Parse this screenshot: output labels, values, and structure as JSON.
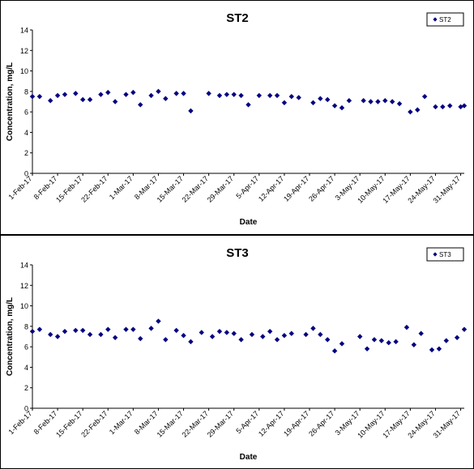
{
  "chart_data": [
    {
      "type": "scatter",
      "title": "ST2",
      "xlabel": "Date",
      "ylabel": "Concentration, mg/L",
      "ylim": [
        0,
        14
      ],
      "yticks": [
        0,
        2,
        4,
        6,
        8,
        10,
        12,
        14
      ],
      "xlim": [
        "2017-02-01",
        "2017-06-01"
      ],
      "xtick_labels": [
        "1-Feb-17",
        "8-Feb-17",
        "15-Feb-17",
        "22-Feb-17",
        "1-Mar-17",
        "8-Mar-17",
        "15-Mar-17",
        "22-Mar-17",
        "29-Mar-17",
        "5-Apr-17",
        "12-Apr-17",
        "19-Apr-17",
        "26-Apr-17",
        "3-May-17",
        "10-May-17",
        "17-May-17",
        "24-May-17",
        "31-May-17"
      ],
      "legend": {
        "position": "top-right",
        "entries": [
          "ST2"
        ]
      },
      "grid": false,
      "marker_color": "#000080",
      "series": [
        {
          "name": "ST2",
          "points": [
            [
              "2017-02-01",
              7.5
            ],
            [
              "2017-02-03",
              7.5
            ],
            [
              "2017-02-06",
              7.1
            ],
            [
              "2017-02-08",
              7.6
            ],
            [
              "2017-02-10",
              7.7
            ],
            [
              "2017-02-13",
              7.8
            ],
            [
              "2017-02-15",
              7.2
            ],
            [
              "2017-02-17",
              7.2
            ],
            [
              "2017-02-20",
              7.7
            ],
            [
              "2017-02-22",
              7.9
            ],
            [
              "2017-02-24",
              7.0
            ],
            [
              "2017-02-27",
              7.7
            ],
            [
              "2017-03-01",
              7.9
            ],
            [
              "2017-03-03",
              6.7
            ],
            [
              "2017-03-06",
              7.6
            ],
            [
              "2017-03-08",
              8.0
            ],
            [
              "2017-03-10",
              7.3
            ],
            [
              "2017-03-13",
              7.8
            ],
            [
              "2017-03-15",
              7.8
            ],
            [
              "2017-03-17",
              6.1
            ],
            [
              "2017-03-22",
              7.8
            ],
            [
              "2017-03-25",
              7.6
            ],
            [
              "2017-03-27",
              7.7
            ],
            [
              "2017-03-29",
              7.7
            ],
            [
              "2017-03-31",
              7.6
            ],
            [
              "2017-04-02",
              6.7
            ],
            [
              "2017-04-05",
              7.6
            ],
            [
              "2017-04-08",
              7.6
            ],
            [
              "2017-04-10",
              7.6
            ],
            [
              "2017-04-12",
              6.9
            ],
            [
              "2017-04-14",
              7.5
            ],
            [
              "2017-04-16",
              7.4
            ],
            [
              "2017-04-20",
              6.9
            ],
            [
              "2017-04-22",
              7.3
            ],
            [
              "2017-04-24",
              7.2
            ],
            [
              "2017-04-26",
              6.6
            ],
            [
              "2017-04-28",
              6.4
            ],
            [
              "2017-04-30",
              7.1
            ],
            [
              "2017-05-04",
              7.1
            ],
            [
              "2017-05-06",
              7.0
            ],
            [
              "2017-05-08",
              7.0
            ],
            [
              "2017-05-10",
              7.1
            ],
            [
              "2017-05-12",
              7.0
            ],
            [
              "2017-05-14",
              6.8
            ],
            [
              "2017-05-17",
              6.0
            ],
            [
              "2017-05-19",
              6.2
            ],
            [
              "2017-05-21",
              7.5
            ],
            [
              "2017-05-24",
              6.5
            ],
            [
              "2017-05-26",
              6.5
            ],
            [
              "2017-05-28",
              6.6
            ],
            [
              "2017-05-31",
              6.5
            ],
            [
              "2017-06-01",
              6.6
            ]
          ]
        }
      ]
    },
    {
      "type": "scatter",
      "title": "ST3",
      "xlabel": "Date",
      "ylabel": "Concentration, mg/L",
      "ylim": [
        0,
        14
      ],
      "yticks": [
        0,
        2,
        4,
        6,
        8,
        10,
        12,
        14
      ],
      "xlim": [
        "2017-02-01",
        "2017-06-01"
      ],
      "xtick_labels": [
        "1-Feb-17",
        "8-Feb-17",
        "15-Feb-17",
        "22-Feb-17",
        "1-Mar-17",
        "8-Mar-17",
        "15-Mar-17",
        "22-Mar-17",
        "29-Mar-17",
        "5-Apr-17",
        "12-Apr-17",
        "19-Apr-17",
        "26-Apr-17",
        "3-May-17",
        "10-May-17",
        "17-May-17",
        "24-May-17",
        "31-May-17"
      ],
      "legend": {
        "position": "top-right",
        "entries": [
          "ST3"
        ]
      },
      "grid": false,
      "marker_color": "#000080",
      "series": [
        {
          "name": "ST3",
          "points": [
            [
              "2017-02-01",
              7.5
            ],
            [
              "2017-02-03",
              7.7
            ],
            [
              "2017-02-06",
              7.2
            ],
            [
              "2017-02-08",
              7.0
            ],
            [
              "2017-02-10",
              7.5
            ],
            [
              "2017-02-13",
              7.6
            ],
            [
              "2017-02-15",
              7.6
            ],
            [
              "2017-02-17",
              7.2
            ],
            [
              "2017-02-20",
              7.2
            ],
            [
              "2017-02-22",
              7.7
            ],
            [
              "2017-02-24",
              6.9
            ],
            [
              "2017-02-27",
              7.7
            ],
            [
              "2017-03-01",
              7.7
            ],
            [
              "2017-03-03",
              6.8
            ],
            [
              "2017-03-06",
              7.8
            ],
            [
              "2017-03-08",
              8.5
            ],
            [
              "2017-03-10",
              6.7
            ],
            [
              "2017-03-13",
              7.6
            ],
            [
              "2017-03-15",
              7.1
            ],
            [
              "2017-03-17",
              6.5
            ],
            [
              "2017-03-20",
              7.4
            ],
            [
              "2017-03-23",
              7.0
            ],
            [
              "2017-03-25",
              7.5
            ],
            [
              "2017-03-27",
              7.4
            ],
            [
              "2017-03-29",
              7.3
            ],
            [
              "2017-03-31",
              6.7
            ],
            [
              "2017-04-03",
              7.2
            ],
            [
              "2017-04-06",
              7.0
            ],
            [
              "2017-04-08",
              7.5
            ],
            [
              "2017-04-10",
              6.7
            ],
            [
              "2017-04-12",
              7.1
            ],
            [
              "2017-04-14",
              7.3
            ],
            [
              "2017-04-18",
              7.2
            ],
            [
              "2017-04-20",
              7.8
            ],
            [
              "2017-04-22",
              7.2
            ],
            [
              "2017-04-24",
              6.7
            ],
            [
              "2017-04-26",
              5.6
            ],
            [
              "2017-04-28",
              6.3
            ],
            [
              "2017-05-03",
              7.0
            ],
            [
              "2017-05-05",
              5.8
            ],
            [
              "2017-05-07",
              6.7
            ],
            [
              "2017-05-09",
              6.6
            ],
            [
              "2017-05-11",
              6.4
            ],
            [
              "2017-05-13",
              6.5
            ],
            [
              "2017-05-16",
              7.9
            ],
            [
              "2017-05-18",
              6.2
            ],
            [
              "2017-05-20",
              7.3
            ],
            [
              "2017-05-23",
              5.7
            ],
            [
              "2017-05-25",
              5.8
            ],
            [
              "2017-05-27",
              6.6
            ],
            [
              "2017-05-30",
              6.9
            ],
            [
              "2017-06-01",
              7.7
            ]
          ]
        }
      ]
    }
  ]
}
